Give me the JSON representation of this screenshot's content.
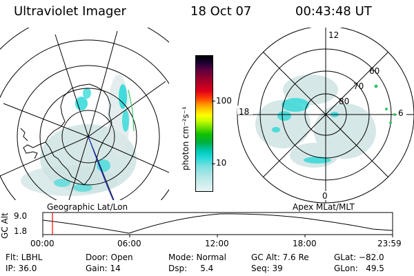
{
  "header": {
    "title": "Ultraviolet Imager",
    "date": "18 Oct 07",
    "time": "00:43:48 UT"
  },
  "colorbar": {
    "unit_label": "photon cm⁻²s⁻¹",
    "ticks": [
      "100",
      "10"
    ],
    "scale": "log"
  },
  "left_map": {
    "caption": "Geographic Lat/Lon"
  },
  "right_map": {
    "caption": "Apex MLat/MLT",
    "mlt_labels": {
      "top": "12",
      "right": "6",
      "bottom": "0",
      "left": "18"
    },
    "lat_labels": [
      "60",
      "70",
      "80"
    ]
  },
  "timeline": {
    "ylabel": "GC Alt",
    "yticks": [
      "9.0",
      "1.8"
    ],
    "xticks": [
      "00:00",
      "06:00",
      "12:00",
      "18:00",
      "23:59"
    ]
  },
  "status": {
    "flt": "Flt: LBHL",
    "ip": "IP: 36.0",
    "door": "Door: Open",
    "gain": "Gain: 14",
    "mode": "Mode: Normal",
    "dsp": "Dsp:     5.4",
    "gc_alt": "GC Alt: 7.6 Re",
    "seq": "Seq: 39",
    "glat": "GLat: −82.0",
    "glon": "GLon:   49.5"
  },
  "colors": {
    "aurora_cyan": "#2fd8d8",
    "aurora_pale": "#cfe3e3",
    "marker_red": "#ff0000",
    "track_blue": "#1f33cc",
    "green_dot": "#33c46a"
  }
}
